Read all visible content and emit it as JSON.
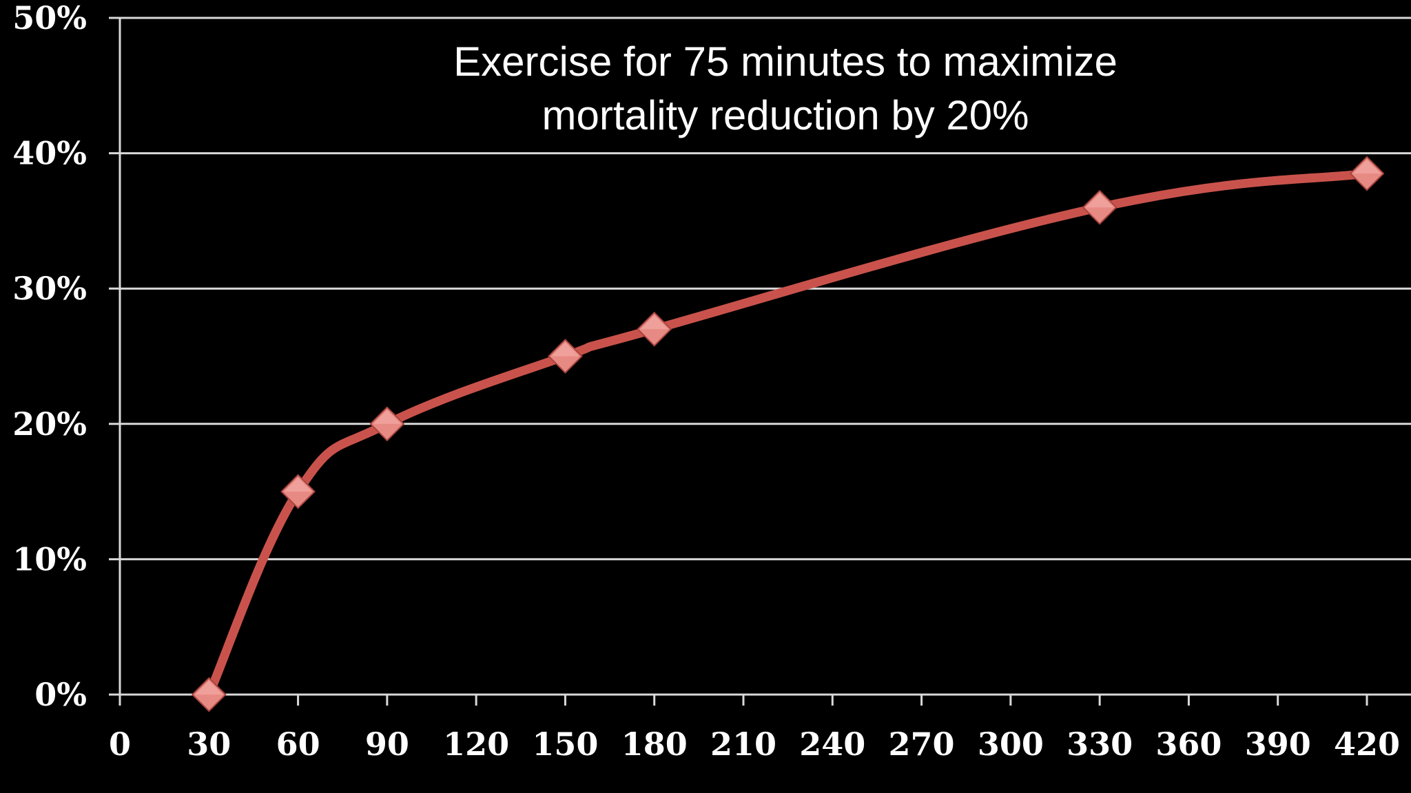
{
  "chart_data": {
    "type": "line",
    "title": "",
    "xlabel": "",
    "ylabel": "",
    "annotation": [
      "Exercise for 75 minutes to maximize",
      "mortality reduction by 20%"
    ],
    "x_ticks": [
      0,
      30,
      60,
      90,
      120,
      150,
      180,
      210,
      240,
      270,
      300,
      330,
      360,
      390,
      420
    ],
    "y_ticks": [
      "0%",
      "10%",
      "20%",
      "30%",
      "40%",
      "50%"
    ],
    "xlim": [
      0,
      420
    ],
    "ylim": [
      0,
      50
    ],
    "grid": true,
    "legend": "none",
    "series": [
      {
        "x": [
          30,
          60,
          90,
          150,
          180,
          330,
          420
        ],
        "y": [
          0,
          15,
          20,
          25,
          27,
          36,
          38.5
        ],
        "color": "#c9534c",
        "marker_color": "#e88a84",
        "marker": "diamond"
      }
    ]
  },
  "colors": {
    "background": "#000000",
    "grid": "#d9d9d9",
    "text": "#ffffff"
  }
}
